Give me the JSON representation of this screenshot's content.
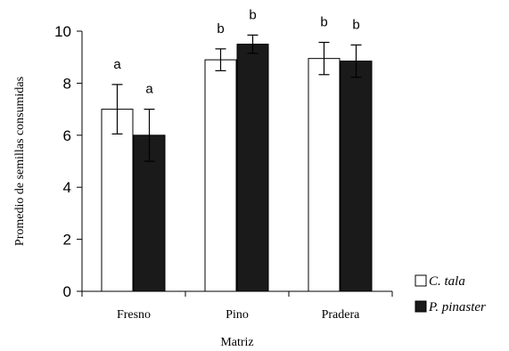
{
  "chart_data": {
    "type": "bar",
    "categories": [
      "Fresno",
      "Pino",
      "Pradera"
    ],
    "series": [
      {
        "name": "C. tala",
        "color": "#ffffff",
        "values": [
          7.0,
          8.9,
          8.95
        ],
        "error": [
          0.95,
          0.42,
          0.62
        ],
        "labels": [
          "a",
          "b",
          "b"
        ]
      },
      {
        "name": "P. pinaster",
        "color": "#1a1a1a",
        "values": [
          6.0,
          9.5,
          8.85
        ],
        "error": [
          1.0,
          0.35,
          0.62
        ],
        "labels": [
          "a",
          "b",
          "b"
        ]
      }
    ],
    "xlabel": "Matriz",
    "ylabel": "Promedio de semillas consumidas",
    "ylim": [
      0,
      10
    ],
    "yticks": [
      0,
      2,
      4,
      6,
      8,
      10
    ],
    "grid": false,
    "legend": "right"
  }
}
